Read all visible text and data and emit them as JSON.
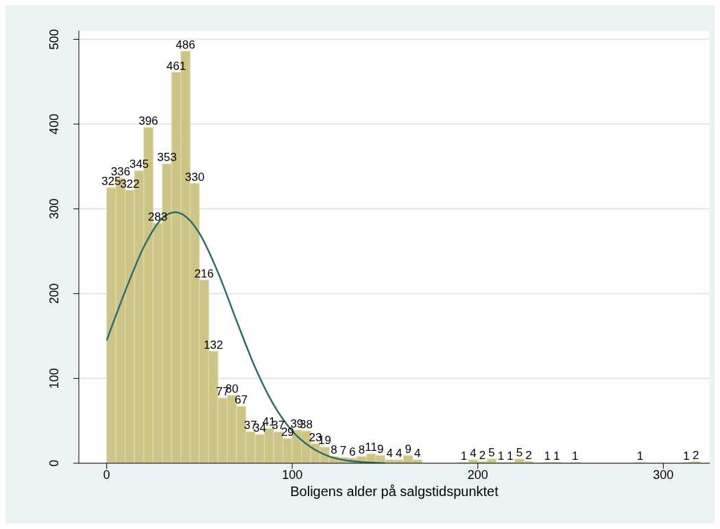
{
  "chart_data": {
    "type": "histogram",
    "xlabel": "Boligens alder på salgstidspunktet",
    "bins": [
      0,
      5,
      10,
      15,
      20,
      25,
      30,
      35,
      40,
      45,
      50,
      55,
      60,
      65,
      70,
      75,
      80,
      85,
      90,
      95,
      100,
      105,
      110,
      115,
      120,
      125,
      130,
      135,
      140,
      145,
      150,
      155,
      160,
      165,
      170,
      175,
      180,
      185,
      190,
      195,
      200,
      205,
      210,
      215,
      220,
      225,
      230,
      235,
      240,
      245,
      250,
      255,
      260,
      265,
      270,
      275,
      280,
      285,
      290,
      295,
      300,
      305,
      310,
      315,
      320
    ],
    "values": [
      325,
      336,
      322,
      345,
      396,
      283,
      353,
      461,
      486,
      330,
      216,
      132,
      77,
      80,
      67,
      37,
      34,
      41,
      37,
      29,
      39,
      38,
      23,
      19,
      8,
      7,
      6,
      8,
      11,
      9,
      4,
      4,
      9,
      4,
      0,
      0,
      0,
      0,
      1,
      4,
      2,
      5,
      1,
      1,
      5,
      2,
      0,
      1,
      1,
      0,
      1,
      0,
      0,
      0,
      0,
      0,
      0,
      1,
      0,
      0,
      0,
      0,
      1,
      2
    ],
    "value_labels": [
      "325",
      "336",
      "322",
      "345",
      "396",
      "283",
      "353",
      "461",
      "486",
      "330",
      "216",
      "132",
      "77",
      "80",
      "67",
      "37",
      "34",
      "41",
      "37",
      "29",
      "39",
      "38",
      "23",
      "19",
      "8",
      "7",
      "6",
      "8",
      "11",
      "9",
      "4",
      "4",
      "9",
      "4",
      null,
      null,
      null,
      null,
      "1",
      "4",
      "2",
      "5",
      "1",
      "1",
      "5",
      "2",
      null,
      "1",
      "1",
      null,
      "1",
      null,
      null,
      null,
      null,
      null,
      null,
      "1",
      null,
      null,
      null,
      null,
      "1",
      "2"
    ],
    "color": "#cdc585",
    "series": [
      {
        "type": "line",
        "color": "#2e6b6b",
        "x": [
          0,
          10,
          20,
          30,
          37,
          45,
          50,
          60,
          70,
          80,
          90,
          100,
          110,
          120,
          130,
          140,
          150
        ],
        "values": [
          145,
          203,
          255,
          289,
          296,
          286,
          271,
          225,
          168,
          113,
          69,
          38,
          19,
          8,
          3,
          1,
          0
        ]
      }
    ],
    "xlim": [
      -15,
      325
    ],
    "xticks": [
      0,
      100,
      200,
      300
    ],
    "ylim": [
      0,
      510
    ],
    "yticks": [
      0,
      100,
      200,
      300,
      400,
      500
    ],
    "grid": "y"
  }
}
